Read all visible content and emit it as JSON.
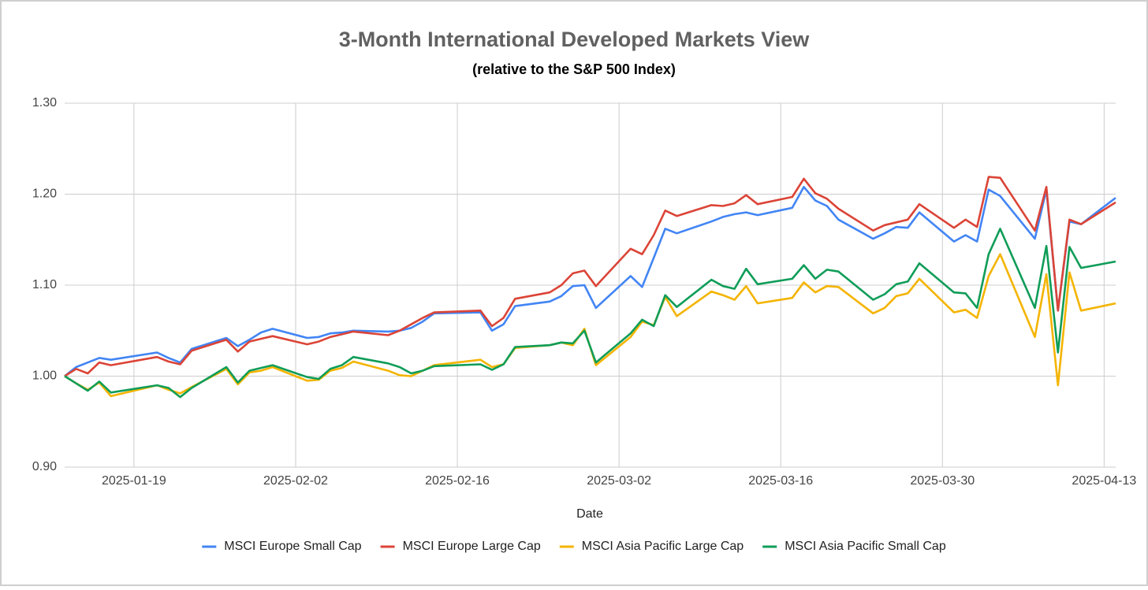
{
  "chart_data": {
    "type": "line",
    "title": "3-Month International Developed Markets View",
    "subtitle": "(relative to the S&P 500 Index)",
    "x_label": "Date",
    "x": [
      "2025-01-13",
      "2025-01-14",
      "2025-01-15",
      "2025-01-16",
      "2025-01-17",
      "2025-01-21",
      "2025-01-22",
      "2025-01-23",
      "2025-01-24",
      "2025-01-27",
      "2025-01-28",
      "2025-01-29",
      "2025-01-30",
      "2025-01-31",
      "2025-02-03",
      "2025-02-04",
      "2025-02-05",
      "2025-02-06",
      "2025-02-07",
      "2025-02-10",
      "2025-02-11",
      "2025-02-12",
      "2025-02-13",
      "2025-02-14",
      "2025-02-18",
      "2025-02-19",
      "2025-02-20",
      "2025-02-21",
      "2025-02-24",
      "2025-02-25",
      "2025-02-26",
      "2025-02-27",
      "2025-02-28",
      "2025-03-03",
      "2025-03-04",
      "2025-03-05",
      "2025-03-06",
      "2025-03-07",
      "2025-03-10",
      "2025-03-11",
      "2025-03-12",
      "2025-03-13",
      "2025-03-14",
      "2025-03-17",
      "2025-03-18",
      "2025-03-19",
      "2025-03-20",
      "2025-03-21",
      "2025-03-24",
      "2025-03-25",
      "2025-03-26",
      "2025-03-27",
      "2025-03-28",
      "2025-03-31",
      "2025-04-01",
      "2025-04-02",
      "2025-04-03",
      "2025-04-04",
      "2025-04-07",
      "2025-04-08",
      "2025-04-09",
      "2025-04-10",
      "2025-04-11",
      "2025-04-14"
    ],
    "series": [
      {
        "name": "MSCI Europe Small Cap",
        "color": "#4285f4",
        "values": [
          1.0,
          1.01,
          1.015,
          1.02,
          1.018,
          1.026,
          1.02,
          1.015,
          1.03,
          1.042,
          1.033,
          1.04,
          1.048,
          1.052,
          1.042,
          1.043,
          1.047,
          1.048,
          1.05,
          1.049,
          1.05,
          1.053,
          1.06,
          1.069,
          1.07,
          1.05,
          1.057,
          1.077,
          1.082,
          1.088,
          1.099,
          1.1,
          1.075,
          1.11,
          1.098,
          1.13,
          1.162,
          1.157,
          1.17,
          1.175,
          1.178,
          1.18,
          1.177,
          1.185,
          1.208,
          1.193,
          1.187,
          1.172,
          1.151,
          1.157,
          1.164,
          1.163,
          1.18,
          1.148,
          1.155,
          1.148,
          1.205,
          1.198,
          1.151,
          1.205,
          1.072,
          1.17,
          1.167,
          1.196
        ]
      },
      {
        "name": "MSCI Europe Large Cap",
        "color": "#db4437",
        "values": [
          1.0,
          1.008,
          1.003,
          1.015,
          1.012,
          1.021,
          1.016,
          1.013,
          1.028,
          1.04,
          1.027,
          1.038,
          1.041,
          1.044,
          1.035,
          1.038,
          1.043,
          1.046,
          1.049,
          1.045,
          1.05,
          1.057,
          1.064,
          1.07,
          1.072,
          1.055,
          1.064,
          1.085,
          1.092,
          1.1,
          1.113,
          1.116,
          1.099,
          1.14,
          1.134,
          1.155,
          1.182,
          1.176,
          1.188,
          1.187,
          1.19,
          1.199,
          1.189,
          1.197,
          1.217,
          1.201,
          1.195,
          1.184,
          1.16,
          1.166,
          1.169,
          1.172,
          1.189,
          1.163,
          1.172,
          1.164,
          1.219,
          1.218,
          1.16,
          1.208,
          1.072,
          1.172,
          1.167,
          1.191
        ]
      },
      {
        "name": "MSCI Asia Pacific Large Cap",
        "color": "#f4b400",
        "values": [
          1.0,
          0.992,
          0.985,
          0.993,
          0.978,
          0.99,
          0.985,
          0.981,
          0.988,
          1.008,
          0.991,
          1.004,
          1.006,
          1.01,
          0.995,
          0.996,
          1.006,
          1.009,
          1.016,
          1.006,
          1.001,
          1.0,
          1.006,
          1.012,
          1.018,
          1.01,
          1.013,
          1.031,
          1.034,
          1.037,
          1.034,
          1.052,
          1.012,
          1.043,
          1.06,
          1.056,
          1.087,
          1.066,
          1.093,
          1.089,
          1.084,
          1.099,
          1.08,
          1.086,
          1.103,
          1.092,
          1.099,
          1.098,
          1.069,
          1.075,
          1.088,
          1.091,
          1.107,
          1.07,
          1.073,
          1.064,
          1.11,
          1.134,
          1.043,
          1.112,
          0.99,
          1.114,
          1.072,
          1.08
        ]
      },
      {
        "name": "MSCI Asia Pacific Small Cap",
        "color": "#0f9d58",
        "values": [
          1.0,
          0.992,
          0.984,
          0.994,
          0.982,
          0.99,
          0.987,
          0.977,
          0.987,
          1.01,
          0.993,
          1.006,
          1.009,
          1.012,
          0.999,
          0.997,
          1.008,
          1.012,
          1.021,
          1.014,
          1.01,
          1.003,
          1.006,
          1.011,
          1.013,
          1.007,
          1.013,
          1.032,
          1.034,
          1.037,
          1.036,
          1.05,
          1.015,
          1.047,
          1.062,
          1.055,
          1.089,
          1.076,
          1.106,
          1.099,
          1.096,
          1.118,
          1.101,
          1.107,
          1.122,
          1.107,
          1.117,
          1.115,
          1.084,
          1.09,
          1.101,
          1.104,
          1.124,
          1.092,
          1.091,
          1.075,
          1.134,
          1.162,
          1.075,
          1.143,
          1.026,
          1.142,
          1.119,
          1.126
        ]
      }
    ],
    "xlim": [
      "2025-01-13",
      "2025-04-14"
    ],
    "xticks": [
      "2025-01-19",
      "2025-02-02",
      "2025-02-16",
      "2025-03-02",
      "2025-03-16",
      "2025-03-30",
      "2025-04-13"
    ],
    "ylim": [
      0.9,
      1.3
    ],
    "yticks": [
      {
        "value": 0.9,
        "label": "0.90"
      },
      {
        "value": 1.0,
        "label": "1.00"
      },
      {
        "value": 1.1,
        "label": "1.10"
      },
      {
        "value": 1.2,
        "label": "1.20"
      },
      {
        "value": 1.3,
        "label": "1.30"
      }
    ],
    "grid": true,
    "legend": "bottom"
  }
}
